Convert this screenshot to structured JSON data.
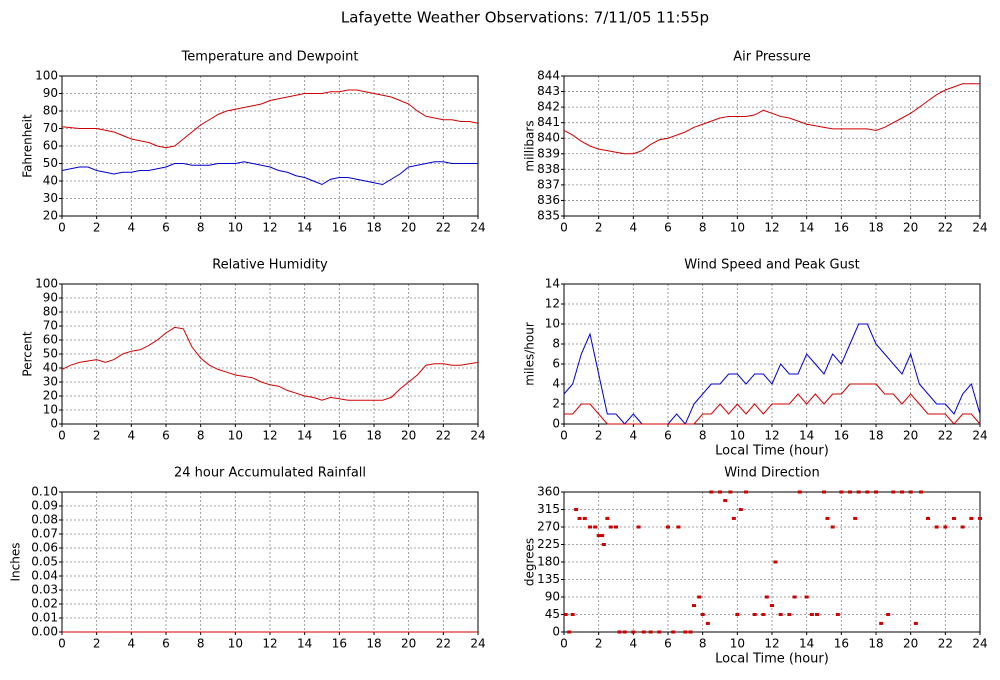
{
  "title": "Lafayette Weather Observations: 7/11/05 11:55p",
  "chart_data": [
    {
      "type": "line",
      "title": "Temperature and Dewpoint",
      "ylabel": "Fahrenheit",
      "x": [
        0,
        0.5,
        1,
        1.5,
        2,
        2.5,
        3,
        3.5,
        4,
        4.5,
        5,
        5.5,
        6,
        6.5,
        7,
        7.5,
        8,
        8.5,
        9,
        9.5,
        10,
        10.5,
        11,
        11.5,
        12,
        12.5,
        13,
        13.5,
        14,
        14.5,
        15,
        15.5,
        16,
        16.5,
        17,
        17.5,
        18,
        18.5,
        19,
        19.5,
        20,
        20.5,
        21,
        21.5,
        22,
        22.5,
        23,
        23.5,
        24
      ],
      "series": [
        {
          "color": "#d00000",
          "values": [
            71,
            70.5,
            70,
            70,
            70,
            69,
            68,
            66,
            64,
            63,
            62,
            60,
            59,
            60,
            64,
            68,
            72,
            75,
            78,
            80,
            81,
            82,
            83,
            84,
            86,
            87,
            88,
            89,
            90,
            90,
            90,
            91,
            91,
            92,
            92,
            91,
            90,
            89,
            88,
            86,
            84,
            80,
            77,
            76,
            75,
            75,
            74,
            74,
            73
          ]
        },
        {
          "color": "#0000d0",
          "values": [
            46,
            47,
            48,
            48,
            46,
            45,
            44,
            45,
            45,
            46,
            46,
            47,
            48,
            50,
            50,
            49,
            49,
            49,
            50,
            50,
            50,
            51,
            50,
            49,
            48,
            46,
            45,
            43,
            42,
            40,
            38,
            41,
            42,
            42,
            41,
            40,
            39,
            38,
            41,
            44,
            48,
            49,
            50,
            51,
            51,
            50,
            50,
            50,
            50
          ]
        }
      ],
      "xlim": [
        0,
        24
      ],
      "ylim": [
        20,
        100
      ],
      "xticks": [
        0,
        2,
        4,
        6,
        8,
        10,
        12,
        14,
        16,
        18,
        20,
        22,
        24
      ],
      "yticks": [
        20,
        30,
        40,
        50,
        60,
        70,
        80,
        90,
        100
      ],
      "grid": true
    },
    {
      "type": "line",
      "title": "Air Pressure",
      "ylabel": "millibars",
      "x": [
        0,
        0.5,
        1,
        1.5,
        2,
        2.5,
        3,
        3.5,
        4,
        4.5,
        5,
        5.5,
        6,
        6.5,
        7,
        7.5,
        8,
        8.5,
        9,
        9.5,
        10,
        10.5,
        11,
        11.5,
        12,
        12.5,
        13,
        13.5,
        14,
        14.5,
        15,
        15.5,
        16,
        16.5,
        17,
        17.5,
        18,
        18.5,
        19,
        19.5,
        20,
        20.5,
        21,
        21.5,
        22,
        22.5,
        23,
        23.5,
        24
      ],
      "series": [
        {
          "color": "#d00000",
          "values": [
            840.5,
            840.2,
            839.8,
            839.5,
            839.3,
            839.2,
            839.1,
            839,
            839,
            839.2,
            839.6,
            839.9,
            840,
            840.2,
            840.4,
            840.7,
            840.9,
            841.1,
            841.3,
            841.4,
            841.4,
            841.4,
            841.5,
            841.8,
            841.6,
            841.4,
            841.3,
            841.1,
            840.9,
            840.8,
            840.7,
            840.6,
            840.6,
            840.6,
            840.6,
            840.6,
            840.5,
            840.7,
            841,
            841.3,
            841.6,
            842,
            842.4,
            842.8,
            843.1,
            843.3,
            843.5,
            843.5,
            843.5
          ]
        }
      ],
      "xlim": [
        0,
        24
      ],
      "ylim": [
        835,
        844
      ],
      "xticks": [
        0,
        2,
        4,
        6,
        8,
        10,
        12,
        14,
        16,
        18,
        20,
        22,
        24
      ],
      "yticks": [
        835,
        836,
        837,
        838,
        839,
        840,
        841,
        842,
        843,
        844
      ],
      "grid": true
    },
    {
      "type": "line",
      "title": "Relative Humidity",
      "ylabel": "Percent",
      "x": [
        0,
        0.5,
        1,
        1.5,
        2,
        2.5,
        3,
        3.5,
        4,
        4.5,
        5,
        5.5,
        6,
        6.5,
        7,
        7.5,
        8,
        8.5,
        9,
        9.5,
        10,
        10.5,
        11,
        11.5,
        12,
        12.5,
        13,
        13.5,
        14,
        14.5,
        15,
        15.5,
        16,
        16.5,
        17,
        17.5,
        18,
        18.5,
        19,
        19.5,
        20,
        20.5,
        21,
        21.5,
        22,
        22.5,
        23,
        23.5,
        24
      ],
      "series": [
        {
          "color": "#d00000",
          "values": [
            39,
            42,
            44,
            45,
            46,
            44,
            46,
            50,
            52,
            53,
            56,
            60,
            65,
            69,
            68,
            55,
            47,
            42,
            39,
            37,
            35,
            34,
            33,
            30,
            28,
            27,
            24,
            22,
            20,
            19,
            17,
            19,
            18,
            17,
            17,
            17,
            17,
            17,
            19,
            25,
            30,
            35,
            42,
            43,
            43,
            42,
            42,
            43,
            44
          ]
        }
      ],
      "xlim": [
        0,
        24
      ],
      "ylim": [
        0,
        100
      ],
      "xticks": [
        0,
        2,
        4,
        6,
        8,
        10,
        12,
        14,
        16,
        18,
        20,
        22,
        24
      ],
      "yticks": [
        0,
        10,
        20,
        30,
        40,
        50,
        60,
        70,
        80,
        90,
        100
      ],
      "grid": true
    },
    {
      "type": "line",
      "title": "Wind Speed and Peak Gust",
      "ylabel": "miles/hour",
      "xlabel": "Local Time (hour)",
      "x": [
        0,
        0.5,
        1,
        1.5,
        2,
        2.5,
        3,
        3.5,
        4,
        4.5,
        5,
        5.5,
        6,
        6.5,
        7,
        7.5,
        8,
        8.5,
        9,
        9.5,
        10,
        10.5,
        11,
        11.5,
        12,
        12.5,
        13,
        13.5,
        14,
        14.5,
        15,
        15.5,
        16,
        16.5,
        17,
        17.5,
        18,
        18.5,
        19,
        19.5,
        20,
        20.5,
        21,
        21.5,
        22,
        22.5,
        23,
        23.5,
        24
      ],
      "series": [
        {
          "color": "#0000d0",
          "values": [
            3,
            4,
            7,
            9,
            5,
            1,
            1,
            0,
            1,
            0,
            0,
            0,
            0,
            1,
            0,
            2,
            3,
            4,
            4,
            5,
            5,
            4,
            5,
            5,
            4,
            6,
            5,
            5,
            7,
            6,
            5,
            7,
            6,
            8,
            10,
            10,
            8,
            7,
            6,
            5,
            7,
            4,
            3,
            2,
            2,
            1,
            3,
            4,
            1
          ]
        },
        {
          "color": "#d00000",
          "values": [
            1,
            1,
            2,
            2,
            1,
            0,
            0,
            0,
            0,
            0,
            0,
            0,
            0,
            0,
            0,
            0,
            1,
            1,
            2,
            1,
            2,
            1,
            2,
            1,
            2,
            2,
            2,
            3,
            2,
            3,
            2,
            3,
            3,
            4,
            4,
            4,
            4,
            3,
            3,
            2,
            3,
            2,
            1,
            1,
            1,
            0,
            1,
            1,
            0
          ]
        }
      ],
      "xlim": [
        0,
        24
      ],
      "ylim": [
        0,
        14
      ],
      "xticks": [
        0,
        2,
        4,
        6,
        8,
        10,
        12,
        14,
        16,
        18,
        20,
        22,
        24
      ],
      "yticks": [
        0,
        2,
        4,
        6,
        8,
        10,
        12,
        14
      ],
      "grid": true
    },
    {
      "type": "line",
      "title": "24 hour Accumulated Rainfall",
      "ylabel": "Inches",
      "x": [
        0,
        24
      ],
      "series": [
        {
          "color": "#d00000",
          "values": [
            0,
            0
          ]
        }
      ],
      "xlim": [
        0,
        24
      ],
      "ylim": [
        0,
        0.1
      ],
      "xticks": [
        0,
        2,
        4,
        6,
        8,
        10,
        12,
        14,
        16,
        18,
        20,
        22,
        24
      ],
      "yticks": [
        {
          "value": 0,
          "label": "0.00"
        },
        {
          "value": 0.01,
          "label": "0.01"
        },
        {
          "value": 0.02,
          "label": "0.02"
        },
        {
          "value": 0.03,
          "label": "0.03"
        },
        {
          "value": 0.04,
          "label": "0.04"
        },
        {
          "value": 0.05,
          "label": "0.05"
        },
        {
          "value": 0.06,
          "label": "0.06"
        },
        {
          "value": 0.07,
          "label": "0.07"
        },
        {
          "value": 0.08,
          "label": "0.08"
        },
        {
          "value": 0.09,
          "label": "0.09"
        },
        {
          "value": 0.1,
          "label": "0.10"
        }
      ],
      "grid": true
    },
    {
      "type": "scatter",
      "title": "Wind Direction",
      "ylabel": "degrees",
      "xlabel": "Local Time (hour)",
      "x": [
        0.1,
        0.3,
        0.5,
        0.7,
        0.9,
        1.2,
        1.5,
        1.8,
        2,
        2.2,
        2.3,
        2.5,
        2.7,
        3,
        3.2,
        3.5,
        4,
        4.3,
        4.6,
        5,
        5.5,
        6,
        6.3,
        6.6,
        7,
        7.3,
        7.5,
        7.8,
        8,
        8.3,
        8.5,
        9,
        9.3,
        9.6,
        9.8,
        10,
        10.2,
        10.5,
        11,
        11.5,
        11.7,
        12,
        12.2,
        12.5,
        13,
        13.3,
        13.6,
        14,
        14.3,
        14.6,
        15,
        15.2,
        15.5,
        15.8,
        16,
        16.5,
        16.8,
        17,
        17.5,
        18,
        18.3,
        18.7,
        19,
        19.5,
        20,
        20.3,
        20.6,
        21,
        21.5,
        22,
        22.5,
        23,
        23.5,
        24
      ],
      "series": [
        {
          "color": "#d00000",
          "values": [
            45,
            0,
            45,
            315,
            292,
            292,
            270,
            270,
            248,
            248,
            225,
            292,
            270,
            270,
            0,
            0,
            0,
            270,
            0,
            0,
            0,
            270,
            0,
            270,
            0,
            0,
            68,
            90,
            45,
            22,
            360,
            360,
            338,
            360,
            292,
            45,
            315,
            360,
            45,
            45,
            90,
            68,
            180,
            45,
            45,
            90,
            360,
            90,
            45,
            45,
            360,
            292,
            270,
            45,
            360,
            360,
            292,
            360,
            360,
            360,
            22,
            45,
            360,
            360,
            360,
            22,
            360,
            292,
            270,
            270,
            292,
            270,
            292,
            292
          ]
        }
      ],
      "xlim": [
        0,
        24
      ],
      "ylim": [
        0,
        360
      ],
      "xticks": [
        0,
        2,
        4,
        6,
        8,
        10,
        12,
        14,
        16,
        18,
        20,
        22,
        24
      ],
      "yticks": [
        0,
        45,
        90,
        135,
        180,
        225,
        270,
        315,
        360
      ],
      "grid": true
    }
  ]
}
